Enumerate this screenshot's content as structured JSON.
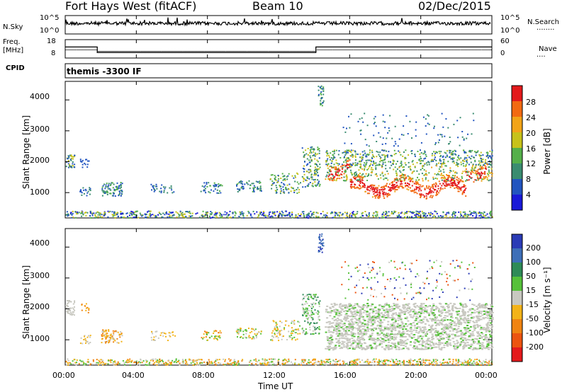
{
  "header": {
    "station": "Fort Hays West (fitACF)",
    "beam": "Beam 10",
    "date": "02/Dec/2015"
  },
  "left_labels": {
    "nsky": "N.Sky",
    "freq": "Freq.",
    "freq_unit": "[MHz]",
    "cpid": "CPID",
    "nsky_ticks": [
      "10^5",
      "10^0"
    ],
    "freq_ticks": [
      "18",
      "8"
    ]
  },
  "right_labels": {
    "nsearch": "N.Search",
    "nave": "Nave",
    "nsearch_ticks": [
      "10^5",
      "10^0"
    ],
    "nave_ticks": [
      "60",
      "0"
    ]
  },
  "cpid_text": "themis -3300 IF",
  "xaxis": {
    "label": "Time UT",
    "ticks": [
      "00:00",
      "04:00",
      "08:00",
      "12:00",
      "16:00",
      "20:00",
      "00:00"
    ]
  },
  "power_panel": {
    "ylabel": "Slant Range [km]",
    "yticks": [
      "1000",
      "2000",
      "3000",
      "4000"
    ],
    "colorbar_label": "Power [dB]",
    "colorbar_ticks": [
      "4",
      "8",
      "12",
      "16",
      "20",
      "24",
      "28"
    ]
  },
  "velocity_panel": {
    "ylabel": "Slant Range [km]",
    "yticks": [
      "1000",
      "2000",
      "3000",
      "4000"
    ],
    "colorbar_label": "Velocity [m s⁻¹]",
    "colorbar_ticks": [
      "200",
      "100",
      "50",
      "15",
      "-15",
      "-50",
      "-100",
      "-200"
    ]
  },
  "chart_data": [
    {
      "type": "line",
      "title": "N.Sky / N.Search",
      "x_range_hours": [
        0,
        24
      ],
      "y_scale": "log",
      "ylim": [
        "10^0",
        "10^5"
      ]
    },
    {
      "type": "line",
      "title": "Freq. / Nave",
      "series": [
        {
          "name": "Freq. [MHz]",
          "x_hours": [
            0,
            1.8,
            1.8,
            14.1,
            14.1,
            24
          ],
          "values": [
            14,
            14,
            11,
            11,
            14,
            14
          ]
        },
        {
          "name": "Nave",
          "x_hours": [
            0,
            1.8,
            1.8,
            14.1,
            14.1,
            24
          ],
          "values": [
            30,
            30,
            20,
            20,
            30,
            30
          ]
        }
      ],
      "ylim_freq": [
        8,
        18
      ],
      "ylim_nave": [
        0,
        60
      ]
    },
    {
      "type": "heatmap",
      "title": "Power [dB]",
      "xlabel": "Time UT",
      "ylabel": "Slant Range [km]",
      "x_range_hours": [
        0,
        24
      ],
      "ylim": [
        180,
        4600
      ],
      "clim": [
        0,
        30
      ],
      "colors": [
        "#1a1ad8",
        "#2255c0",
        "#3a8c70",
        "#55b04a",
        "#c7c21a",
        "#f2a418",
        "#f26a12",
        "#e31a1c"
      ]
    },
    {
      "type": "heatmap",
      "title": "Velocity [m s⁻¹]",
      "xlabel": "Time UT",
      "ylabel": "Slant Range [km]",
      "x_range_hours": [
        0,
        24
      ],
      "ylim": [
        180,
        4600
      ],
      "clim": [
        -250,
        250
      ],
      "colors": [
        "#2a3bb6",
        "#3e6fb8",
        "#2e8b57",
        "#56c13a",
        "#c8c8c0",
        "#f3b318",
        "#f08412",
        "#ec5410",
        "#e41a1c"
      ]
    }
  ]
}
